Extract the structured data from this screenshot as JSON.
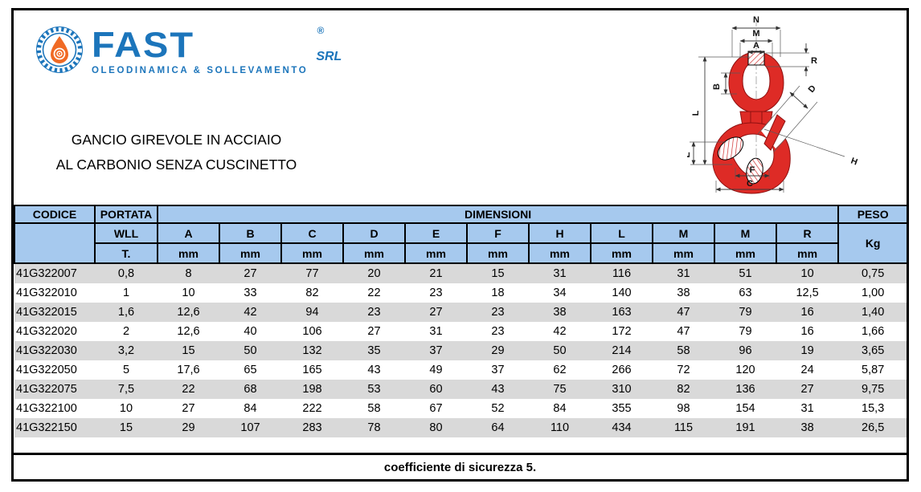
{
  "brand": {
    "name": "FAST",
    "registered": "®",
    "suffix": "SRL",
    "tagline": "OLEODINAMICA & SOLLEVAMENTO",
    "blue": "#1c75bb",
    "orange": "#f06a25"
  },
  "title": {
    "line1": "GANCIO GIREVOLE IN ACCIAIO",
    "line2": "AL CARBONIO SENZA CUSCINETTO"
  },
  "table": {
    "header": {
      "codice": "CODICE",
      "portata": "PORTATA",
      "dimensioni": "DIMENSIONI",
      "peso": "PESO",
      "wll": "WLL",
      "t": "T.",
      "kg": "Kg",
      "unit": "mm",
      "dim_cols": [
        "A",
        "B",
        "C",
        "D",
        "E",
        "F",
        "H",
        "L",
        "M",
        "M",
        "R"
      ]
    },
    "rows": [
      {
        "codice": "41G322007",
        "wll": "0,8",
        "dims": [
          "8",
          "27",
          "77",
          "20",
          "21",
          "15",
          "31",
          "116",
          "31",
          "51",
          "10"
        ],
        "peso": "0,75"
      },
      {
        "codice": "41G322010",
        "wll": "1",
        "dims": [
          "10",
          "33",
          "82",
          "22",
          "23",
          "18",
          "34",
          "140",
          "38",
          "63",
          "12,5"
        ],
        "peso": "1,00"
      },
      {
        "codice": "41G322015",
        "wll": "1,6",
        "dims": [
          "12,6",
          "42",
          "94",
          "23",
          "27",
          "23",
          "38",
          "163",
          "47",
          "79",
          "16"
        ],
        "peso": "1,40"
      },
      {
        "codice": "41G322020",
        "wll": "2",
        "dims": [
          "12,6",
          "40",
          "106",
          "27",
          "31",
          "23",
          "42",
          "172",
          "47",
          "79",
          "16"
        ],
        "peso": "1,66"
      },
      {
        "codice": "41G322030",
        "wll": "3,2",
        "dims": [
          "15",
          "50",
          "132",
          "35",
          "37",
          "29",
          "50",
          "214",
          "58",
          "96",
          "19"
        ],
        "peso": "3,65"
      },
      {
        "codice": "41G322050",
        "wll": "5",
        "dims": [
          "17,6",
          "65",
          "165",
          "43",
          "49",
          "37",
          "62",
          "266",
          "72",
          "120",
          "24"
        ],
        "peso": "5,87"
      },
      {
        "codice": "41G322075",
        "wll": "7,5",
        "dims": [
          "22",
          "68",
          "198",
          "53",
          "60",
          "43",
          "75",
          "310",
          "82",
          "136",
          "27"
        ],
        "peso": "9,75"
      },
      {
        "codice": "41G322100",
        "wll": "10",
        "dims": [
          "27",
          "84",
          "222",
          "58",
          "67",
          "52",
          "84",
          "355",
          "98",
          "154",
          "31"
        ],
        "peso": "15,3"
      },
      {
        "codice": "41G322150",
        "wll": "15",
        "dims": [
          "29",
          "107",
          "283",
          "78",
          "80",
          "64",
          "110",
          "434",
          "115",
          "191",
          "38"
        ],
        "peso": "26,5"
      }
    ],
    "colors": {
      "header_bg": "#a6c9ee",
      "stripe_bg": "#d9d9d9"
    }
  },
  "footer": {
    "text": "coefficiente di sicurezza 5."
  },
  "drawing": {
    "color": "#de2b26",
    "labels": {
      "n": "N",
      "m": "M",
      "a": "A",
      "r": "R",
      "b": "B",
      "l": "L",
      "e": "E",
      "f": "F",
      "c": "C",
      "d": "D",
      "h": "H"
    }
  }
}
